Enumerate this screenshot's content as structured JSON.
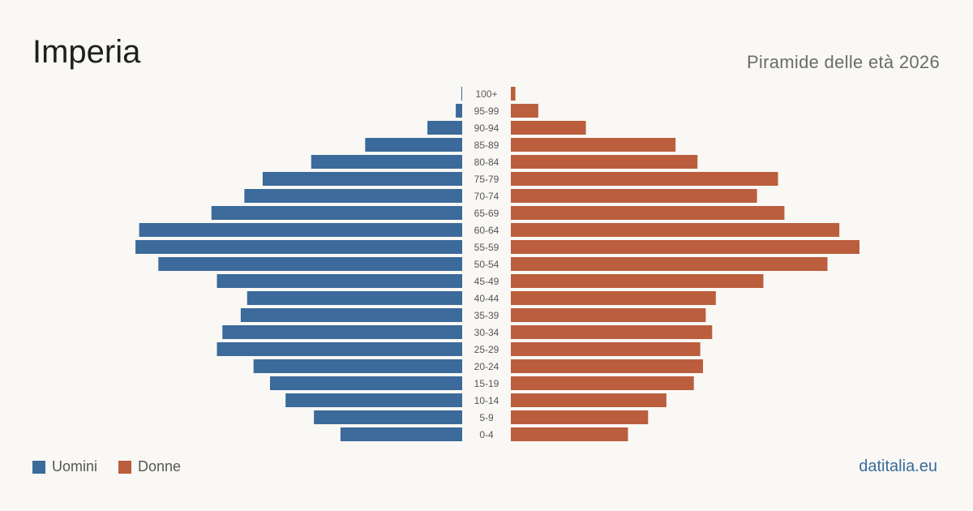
{
  "header": {
    "title": "Imperia",
    "subtitle": "Piramide delle età 2026"
  },
  "footer": {
    "brand": "datitalia.eu"
  },
  "colors": {
    "men": "#3b6a9b",
    "women": "#bb5e3d"
  },
  "chart_data": {
    "type": "bar",
    "orientation": "horizontal-pyramid",
    "title": "Piramide delle età 2026",
    "categories": [
      "100+",
      "95-99",
      "90-94",
      "85-89",
      "80-84",
      "75-79",
      "70-74",
      "65-69",
      "60-64",
      "55-59",
      "50-54",
      "45-49",
      "40-44",
      "35-39",
      "30-34",
      "25-29",
      "20-24",
      "15-19",
      "10-14",
      "5-9",
      "0-4"
    ],
    "series": [
      {
        "name": "Uomini",
        "color": "#3b6a9b",
        "values": [
          8,
          70,
          380,
          1060,
          1650,
          2180,
          2380,
          2740,
          3530,
          3570,
          3320,
          2680,
          2350,
          2420,
          2620,
          2680,
          2280,
          2100,
          1930,
          1620,
          1330
        ]
      },
      {
        "name": "Donne",
        "color": "#bb5e3d",
        "values": [
          50,
          300,
          820,
          1800,
          2040,
          2920,
          2690,
          2990,
          3590,
          3810,
          3460,
          2760,
          2240,
          2130,
          2200,
          2070,
          2100,
          2000,
          1700,
          1500,
          1280
        ]
      }
    ],
    "legend": "bottom-left",
    "grid": false
  }
}
